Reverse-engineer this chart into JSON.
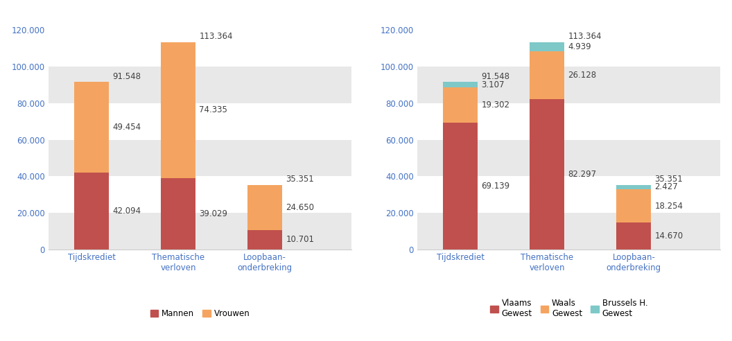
{
  "categories": [
    "Tijdskrediet",
    "Thematische\nverloven",
    "Loopbaan-\nonderbreking"
  ],
  "chart1": {
    "mannen": [
      42094,
      39029,
      10701
    ],
    "vrouwen": [
      49454,
      74335,
      24650
    ],
    "totals": [
      91548,
      113364,
      35351
    ],
    "color_mannen": "#c0504d",
    "color_vrouwen": "#f4a460",
    "legend_labels": [
      "Mannen",
      "Vrouwen"
    ]
  },
  "chart2": {
    "vlaams": [
      69139,
      82297,
      14670
    ],
    "waals": [
      19302,
      26128,
      18254
    ],
    "brussels": [
      3107,
      4939,
      2427
    ],
    "totals": [
      91548,
      113364,
      35351
    ],
    "color_vlaams": "#c0504d",
    "color_waals": "#f4a460",
    "color_brussels": "#7ec8c8",
    "legend_labels": [
      "Vlaams\nGewest",
      "Waals\nGewest",
      "Brussels H.\nGewest"
    ]
  },
  "ylim": [
    0,
    130000
  ],
  "yticks": [
    0,
    20000,
    40000,
    60000,
    80000,
    100000,
    120000
  ],
  "background_color": "#ffffff",
  "bar_width": 0.4,
  "fontsize_labels": 8.5,
  "fontsize_ticks": 8.5,
  "fontsize_legend": 8.5,
  "label_color": "#404040",
  "tick_color": "#4472c4",
  "stripe_color": "#e8e8e8",
  "stripe_alpha": 1.0
}
